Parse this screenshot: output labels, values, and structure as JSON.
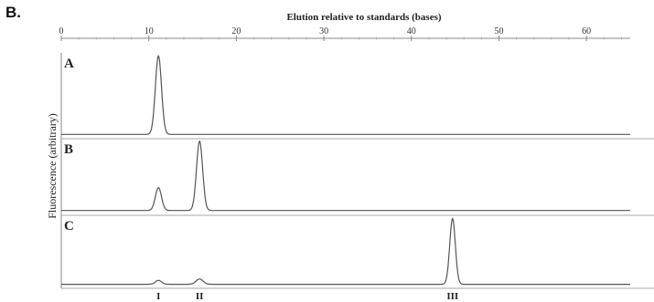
{
  "figure_label": "B.",
  "chart_data": {
    "type": "line",
    "title": "",
    "xlabel": "Elution relative to standards (bases)",
    "ylabel": "Fluorescence (arbitrary)",
    "xlim": [
      0,
      65
    ],
    "xticks": [
      "0",
      "10",
      "20",
      "30",
      "40",
      "50",
      "60"
    ],
    "grid": false,
    "panels": [
      {
        "label": "A",
        "baseline": 0.02,
        "peaks": [
          {
            "x": 11.1,
            "height": 1.0,
            "width": 0.35
          }
        ]
      },
      {
        "label": "B",
        "baseline": 0.03,
        "peaks": [
          {
            "x": 11.1,
            "height": 0.33,
            "width": 0.35
          },
          {
            "x": 15.8,
            "height": 1.0,
            "width": 0.35
          }
        ]
      },
      {
        "label": "C",
        "baseline": 0.02,
        "peaks": [
          {
            "x": 11.1,
            "height": 0.06,
            "width": 0.35
          },
          {
            "x": 15.8,
            "height": 0.08,
            "width": 0.4
          },
          {
            "x": 44.7,
            "height": 1.0,
            "width": 0.32
          }
        ]
      }
    ],
    "peak_labels": [
      {
        "text": "I",
        "x": 11.1
      },
      {
        "text": "II",
        "x": 15.8
      },
      {
        "text": "III",
        "x": 44.7
      }
    ]
  }
}
